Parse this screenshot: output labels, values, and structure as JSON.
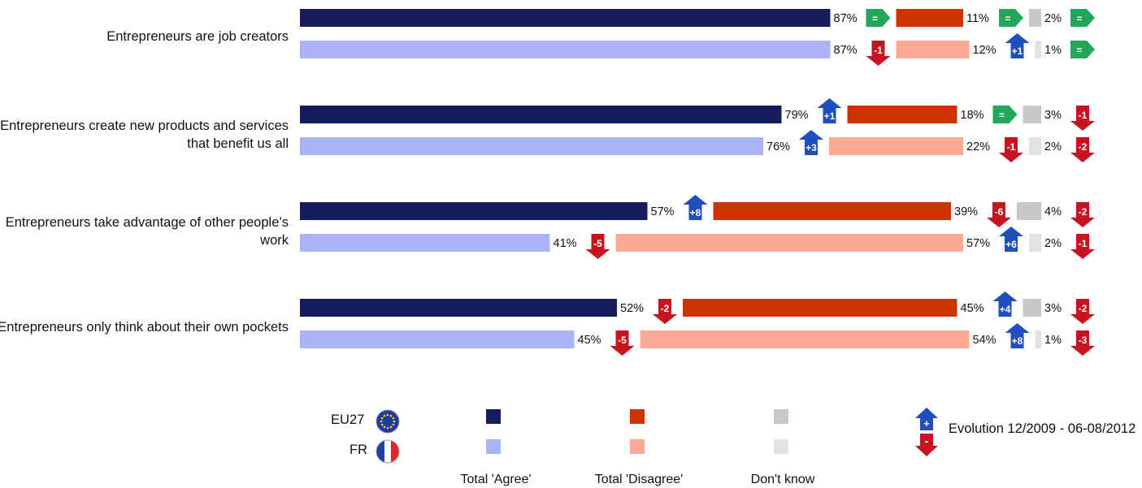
{
  "chart_data": {
    "type": "bar",
    "orientation": "horizontal",
    "stacked_segments": [
      "Total 'Agree'",
      "Total 'Disagree'",
      "Don't know"
    ],
    "categories": [
      "Entrepreneurs are job creators",
      "Entrepreneurs create new products and services\nthat benefit us all",
      "Entrepreneurs take advantage of other people’s\nwork",
      "Entrepreneurs only think about their own pockets"
    ],
    "series": [
      {
        "name": "EU27",
        "agree": [
          87,
          79,
          57,
          52
        ],
        "agree_labels": [
          "87%",
          "79%",
          "57%",
          "52%"
        ],
        "agree_evolution": [
          "=",
          "+1",
          "+8",
          "-2"
        ],
        "disagree": [
          11,
          18,
          39,
          45
        ],
        "disagree_labels": [
          "11%",
          "18%",
          "39%",
          "45%"
        ],
        "disagree_evolution": [
          "=",
          "=",
          "-6",
          "+4"
        ],
        "dont_know": [
          2,
          3,
          4,
          3
        ],
        "dont_know_labels": [
          "2%",
          "3%",
          "4%",
          "3%"
        ],
        "dont_know_evolution": [
          "=",
          "-1",
          "-2",
          "-2"
        ]
      },
      {
        "name": "FR",
        "agree": [
          87,
          76,
          41,
          45
        ],
        "agree_labels": [
          "87%",
          "76%",
          "41%",
          "45%"
        ],
        "agree_evolution": [
          "-1",
          "+3",
          "-5",
          "-5"
        ],
        "disagree": [
          12,
          22,
          57,
          54
        ],
        "disagree_labels": [
          "12%",
          "22%",
          "57%",
          "54%"
        ],
        "disagree_evolution": [
          "+1",
          "-1",
          "+6",
          "+8"
        ],
        "dont_know": [
          1,
          2,
          2,
          1
        ],
        "dont_know_labels": [
          "1%",
          "2%",
          "2%",
          "1%"
        ],
        "dont_know_evolution": [
          "=",
          "-2",
          "-1",
          "-3"
        ]
      }
    ],
    "colors": {
      "EU27": {
        "agree": "#141c5e",
        "disagree": "#cc3300",
        "dont_know": "#c8c8c8"
      },
      "FR": {
        "agree": "#a9b3f5",
        "disagree": "#f9a994",
        "dont_know": "#e2e2e2"
      },
      "arrow_up": "#1f4fbf",
      "arrow_down": "#c8141e",
      "arrow_equal": "#22a65a"
    },
    "legend": {
      "series_labels": [
        "EU27",
        "FR"
      ],
      "category_labels": [
        "Total 'Agree'",
        "Total 'Disagree'",
        "Don't know"
      ],
      "evolution_up_symbol": "+",
      "evolution_down_symbol": "-",
      "evolution_label": "Evolution 12/2009 - 06-08/2012"
    }
  }
}
